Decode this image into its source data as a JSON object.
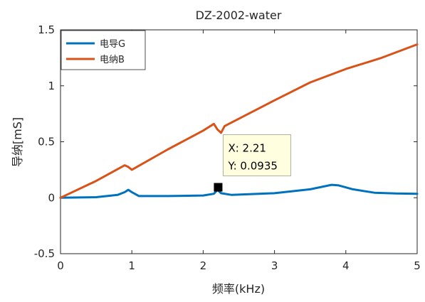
{
  "chart_data": {
    "type": "line",
    "title": "DZ-2002-water",
    "xlabel": "频率(kHz)",
    "ylabel": "导纳[mS]",
    "xlim": [
      0,
      5
    ],
    "ylim": [
      -0.5,
      1.5
    ],
    "x_ticks": [
      "0",
      "1",
      "2",
      "3",
      "4",
      "5"
    ],
    "y_ticks": [
      "-0.5",
      "0",
      "0.5",
      "1",
      "1.5"
    ],
    "legend_position": "top-left",
    "grid": false,
    "series": [
      {
        "name": "电导G",
        "color": "#0072BD",
        "x": [
          0,
          0.5,
          0.8,
          0.9,
          0.95,
          1.0,
          1.1,
          1.5,
          2.0,
          2.15,
          2.2,
          2.25,
          2.4,
          3.0,
          3.5,
          3.8,
          3.9,
          4.1,
          4.4,
          4.7,
          5.0
        ],
        "y": [
          0,
          0.005,
          0.025,
          0.05,
          0.07,
          0.05,
          0.015,
          0.015,
          0.02,
          0.035,
          0.07,
          0.04,
          0.025,
          0.04,
          0.075,
          0.115,
          0.11,
          0.075,
          0.045,
          0.038,
          0.035
        ]
      },
      {
        "name": "电纳B",
        "color": "#D95319",
        "x": [
          0,
          0.5,
          0.9,
          0.95,
          1.0,
          1.5,
          2.0,
          2.15,
          2.2,
          2.25,
          2.3,
          3.0,
          3.5,
          4.0,
          4.5,
          5.0
        ],
        "y": [
          0,
          0.15,
          0.29,
          0.275,
          0.25,
          0.43,
          0.6,
          0.66,
          0.61,
          0.58,
          0.64,
          0.87,
          1.03,
          1.15,
          1.25,
          1.37
        ]
      }
    ],
    "datatip": {
      "x_text": "X: 2.21",
      "y_text": "Y: 0.0935",
      "x": 2.21,
      "y": 0.0935
    }
  }
}
